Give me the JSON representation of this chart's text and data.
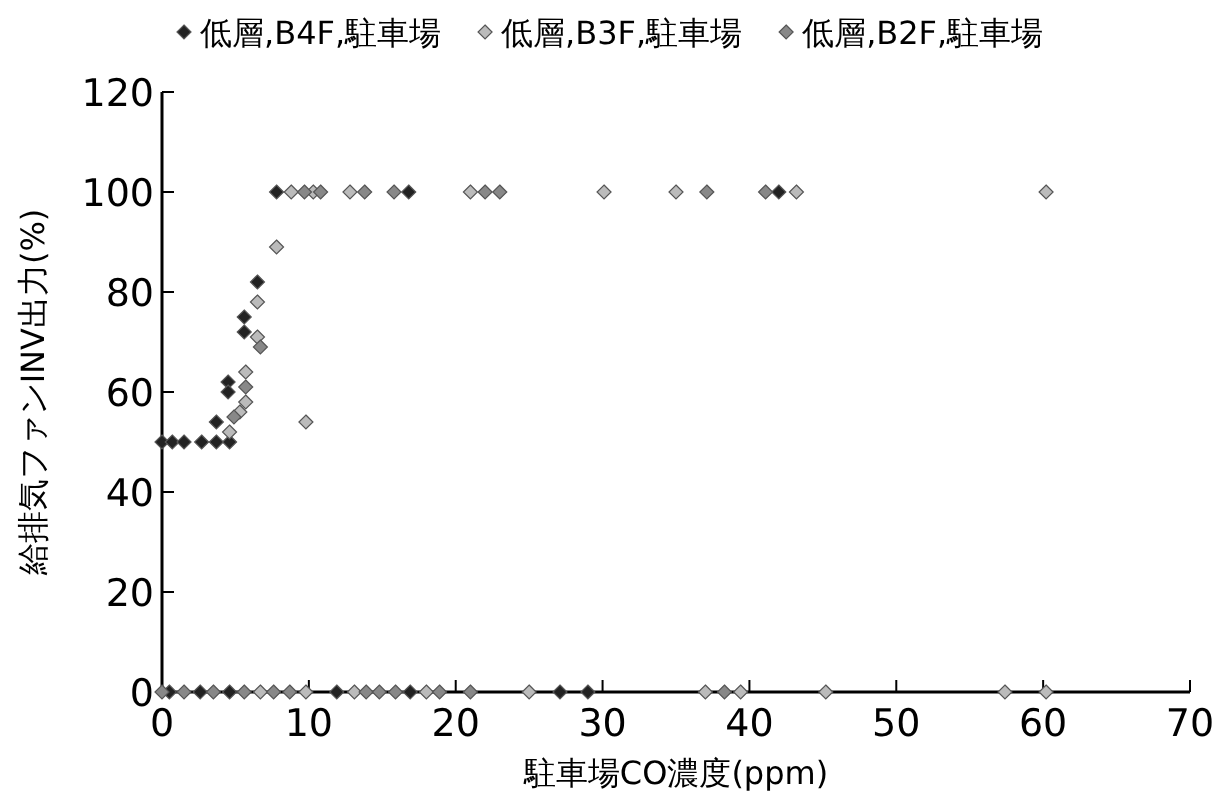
{
  "chart_data": {
    "type": "scatter",
    "xlabel": "駐車場CO濃度(ppm)",
    "ylabel": "給排気ファンINV出力(%)",
    "xlim": [
      0,
      70
    ],
    "xticks": [
      0,
      10,
      20,
      30,
      40,
      50,
      60,
      70
    ],
    "ylim": [
      0,
      120
    ],
    "yticks": [
      0,
      20,
      40,
      60,
      80,
      100,
      120
    ],
    "grid": false,
    "legend": "top",
    "marker": "diamond",
    "series": [
      {
        "name": "低層,B4F,駐車場",
        "color": "#222222",
        "x": [
          0,
          0.7,
          1.5,
          2.7,
          3.7,
          4.6,
          3.7,
          4.5,
          4.5,
          5.6,
          5.6,
          6.5,
          7.8,
          16.8,
          42,
          0.5,
          2.6,
          4.6,
          11.9,
          16.9,
          27.1,
          29
        ],
        "values": [
          50,
          50,
          50,
          50,
          50,
          50,
          54,
          62,
          60,
          75,
          72,
          82,
          100,
          100,
          100,
          0,
          0,
          0,
          0,
          0,
          0,
          0
        ]
      },
      {
        "name": "低層,B3F,駐車場",
        "color": "#bbbbbb",
        "x": [
          4.6,
          5.3,
          5.7,
          5.7,
          6.5,
          6.5,
          7.8,
          9.8,
          8.8,
          10.3,
          12.8,
          21,
          30.1,
          35,
          43.2,
          60.2,
          6.7,
          9.8,
          13.1,
          18,
          25,
          37,
          39.4,
          45.2,
          57.4,
          60.2
        ],
        "values": [
          52,
          56,
          58,
          64,
          78,
          71,
          89,
          54,
          100,
          100,
          100,
          100,
          100,
          100,
          100,
          100,
          0,
          0,
          0,
          0,
          0,
          0,
          0,
          0,
          0,
          0
        ]
      },
      {
        "name": "低層,B2F,駐車場",
        "color": "#888888",
        "x": [
          4.9,
          5.7,
          6.7,
          9.7,
          10.8,
          13.8,
          15.8,
          22,
          23,
          37.1,
          41.1,
          0,
          1.5,
          3.5,
          5.6,
          7.6,
          8.7,
          13.9,
          14.8,
          15.9,
          18.9,
          21,
          38.3
        ],
        "values": [
          55,
          61,
          69,
          100,
          100,
          100,
          100,
          100,
          100,
          100,
          100,
          0,
          0,
          0,
          0,
          0,
          0,
          0,
          0,
          0,
          0,
          0,
          0
        ]
      }
    ]
  }
}
